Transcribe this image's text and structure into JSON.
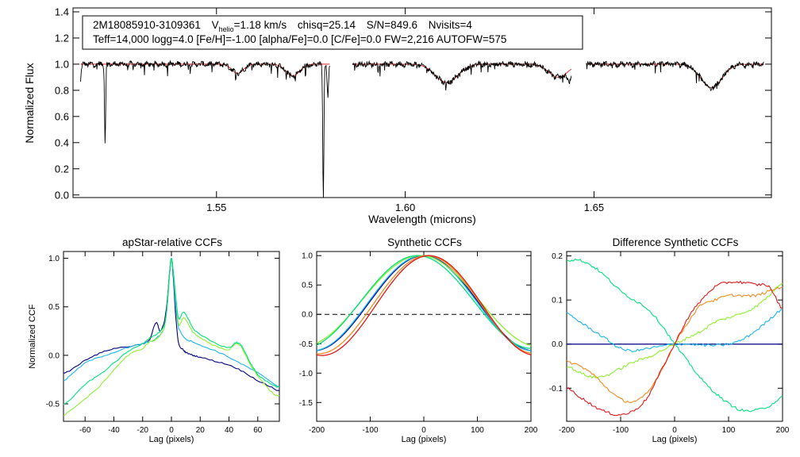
{
  "chart_data": [
    {
      "id": "spectrum",
      "type": "line",
      "xlabel": "Wavelength (microns)",
      "ylabel": "Normalized Flux",
      "xlim": [
        1.512,
        1.697
      ],
      "ylim": [
        -0.02,
        1.43
      ],
      "xticks": [
        {
          "v": 1.55,
          "label": "1.55"
        },
        {
          "v": 1.6,
          "label": "1.60"
        },
        {
          "v": 1.65,
          "label": "1.65"
        }
      ],
      "yticks": [
        {
          "v": 0.0,
          "label": "0.0"
        },
        {
          "v": 0.2,
          "label": "0.2"
        },
        {
          "v": 0.4,
          "label": "0.4"
        },
        {
          "v": 0.6,
          "label": "0.6"
        },
        {
          "v": 0.8,
          "label": "0.8"
        },
        {
          "v": 1.0,
          "label": "1.0"
        },
        {
          "v": 1.2,
          "label": "1.2"
        },
        {
          "v": 1.4,
          "label": "1.4"
        }
      ],
      "info": {
        "star": "2M18085910-3109361",
        "vhelio_prefix": "V",
        "vhelio_sub": "helio",
        "vhelio_value": "=1.18 km/s",
        "chisq": "chisq=25.14",
        "sn": "S/N=849.6",
        "nvisits": "Nvisits=4",
        "params": "Teff=14,000 logg=4.0 [Fe/H]=-1.00 [alpha/Fe]=0.0 [C/Fe]=0.0 FW=2,216 AUTOFW=575"
      },
      "segments": [
        [
          1.514,
          1.58
        ],
        [
          1.586,
          1.644
        ],
        [
          1.648,
          1.695
        ]
      ],
      "lines": [
        {
          "center": 1.5137,
          "depth": 0.22,
          "width": 0.0003
        },
        {
          "center": 1.5205,
          "depth": 0.6,
          "width": 0.00015
        },
        {
          "center": 1.5783,
          "depth": 1.05,
          "width": 0.00015
        },
        {
          "center": 1.5795,
          "depth": 0.25,
          "width": 0.0002
        },
        {
          "center": 1.6435,
          "depth": 0.08,
          "width": 0.0006
        }
      ],
      "broad_lines": [
        {
          "center": 1.5556,
          "depth": 0.07,
          "width": 0.0015
        },
        {
          "center": 1.5702,
          "depth": 0.09,
          "width": 0.0018
        },
        {
          "center": 1.611,
          "depth": 0.14,
          "width": 0.003
        },
        {
          "center": 1.6405,
          "depth": 0.1,
          "width": 0.0025
        },
        {
          "center": 1.6811,
          "depth": 0.18,
          "width": 0.0028
        }
      ],
      "series": [
        {
          "name": "observed",
          "color": "#000000"
        },
        {
          "name": "model",
          "color": "#e02020"
        }
      ]
    },
    {
      "id": "apstar_ccf",
      "type": "line",
      "title": "apStar-relative CCFs",
      "xlabel": "Lag (pixels)",
      "ylabel": "Normalized CCF",
      "xlim": [
        -75,
        75
      ],
      "ylim": [
        -0.68,
        1.07
      ],
      "xticks": [
        {
          "v": -60,
          "label": "-60"
        },
        {
          "v": -40,
          "label": "-40"
        },
        {
          "v": -20,
          "label": "-20"
        },
        {
          "v": 0,
          "label": "0"
        },
        {
          "v": 20,
          "label": "20"
        },
        {
          "v": 40,
          "label": "40"
        },
        {
          "v": 60,
          "label": "60"
        }
      ],
      "yticks": [
        {
          "v": -0.5,
          "label": "-0.5"
        },
        {
          "v": 0.0,
          "label": "0.0"
        },
        {
          "v": 0.5,
          "label": "0.5"
        },
        {
          "v": 1.0,
          "label": "1.0"
        }
      ],
      "series": [
        {
          "name": "visit-1",
          "color": "#00007f",
          "x": [
            -75,
            -70,
            -60,
            -50,
            -40,
            -30,
            -20,
            -15,
            -12,
            -10,
            -8,
            -5,
            -3,
            -1,
            0,
            1,
            3,
            5,
            8,
            10,
            15,
            20,
            30,
            40,
            50,
            60,
            70,
            75
          ],
          "y": [
            -0.18,
            -0.15,
            -0.05,
            0.02,
            0.07,
            0.09,
            0.12,
            0.16,
            0.3,
            0.33,
            0.25,
            0.34,
            0.55,
            0.9,
            0.99,
            0.85,
            0.4,
            0.12,
            0.06,
            0.03,
            0.0,
            -0.02,
            -0.06,
            -0.1,
            -0.17,
            -0.26,
            -0.33,
            -0.37
          ]
        },
        {
          "name": "visit-2",
          "color": "#1ab4f0",
          "x": [
            -75,
            -70,
            -60,
            -50,
            -40,
            -30,
            -20,
            -15,
            -10,
            -5,
            -3,
            -1,
            0,
            1,
            3,
            5,
            10,
            15,
            20,
            30,
            40,
            50,
            60,
            70,
            75
          ],
          "y": [
            -0.26,
            -0.2,
            -0.08,
            -0.02,
            0.03,
            0.08,
            0.12,
            0.14,
            0.18,
            0.28,
            0.5,
            0.88,
            1.0,
            0.88,
            0.5,
            0.28,
            0.17,
            0.14,
            0.1,
            0.05,
            -0.02,
            -0.1,
            -0.18,
            -0.28,
            -0.32
          ]
        },
        {
          "name": "visit-3",
          "color": "#90ee30",
          "x": [
            -75,
            -70,
            -60,
            -50,
            -40,
            -30,
            -20,
            -15,
            -10,
            -5,
            -3,
            -1,
            0,
            1,
            3,
            5,
            8,
            10,
            15,
            20,
            30,
            40,
            45,
            48,
            50,
            55,
            60,
            70,
            75
          ],
          "y": [
            -0.62,
            -0.56,
            -0.45,
            -0.32,
            -0.15,
            0.0,
            0.07,
            0.14,
            0.17,
            0.28,
            0.5,
            0.88,
            0.98,
            0.9,
            0.6,
            0.32,
            0.38,
            0.36,
            0.24,
            0.18,
            0.1,
            0.06,
            0.12,
            0.1,
            0.04,
            -0.1,
            -0.22,
            -0.38,
            -0.42
          ]
        },
        {
          "name": "visit-4",
          "color": "#00e080",
          "x": [
            -75,
            -70,
            -60,
            -50,
            -40,
            -30,
            -20,
            -15,
            -10,
            -5,
            -3,
            -1,
            0,
            1,
            3,
            5,
            8,
            10,
            15,
            20,
            30,
            40,
            45,
            48,
            50,
            55,
            60,
            70,
            75
          ],
          "y": [
            -0.5,
            -0.45,
            -0.3,
            -0.2,
            -0.08,
            0.04,
            0.12,
            0.18,
            0.22,
            0.3,
            0.5,
            0.88,
            1.0,
            0.9,
            0.6,
            0.38,
            0.44,
            0.42,
            0.28,
            0.21,
            0.13,
            0.08,
            0.13,
            0.11,
            0.06,
            -0.08,
            -0.2,
            -0.3,
            -0.33
          ]
        }
      ]
    },
    {
      "id": "synthetic_ccf",
      "type": "line",
      "title": "Synthetic CCFs",
      "xlabel": "Lag (pixels)",
      "ylabel": "",
      "xlim": [
        -200,
        200
      ],
      "ylim": [
        -1.82,
        1.07
      ],
      "reference_line": {
        "y": 0.0,
        "style": "dashed"
      },
      "xticks": [
        {
          "v": -200,
          "label": "-200"
        },
        {
          "v": -100,
          "label": "-100"
        },
        {
          "v": 0,
          "label": "0"
        },
        {
          "v": 100,
          "label": "100"
        },
        {
          "v": 200,
          "label": "200"
        }
      ],
      "yticks": [
        {
          "v": -1.5,
          "label": "-1.5"
        },
        {
          "v": -1.0,
          "label": "-1.0"
        },
        {
          "v": -0.5,
          "label": "-0.5"
        },
        {
          "v": 0.0,
          "label": "0.0"
        },
        {
          "v": 0.5,
          "label": "0.5"
        },
        {
          "v": 1.0,
          "label": "1.0"
        }
      ],
      "series": [
        {
          "name": "visit-1",
          "color": "#00007f",
          "shift": 0,
          "width": 104,
          "depth": 1.62
        },
        {
          "name": "visit-2",
          "color": "#1ab4f0",
          "shift": -2,
          "width": 104,
          "depth": 1.62
        },
        {
          "name": "visit-3",
          "color": "#90ee30",
          "shift": -6,
          "width": 112,
          "depth": 1.55
        },
        {
          "name": "visit-4",
          "color": "#00e080",
          "shift": -12,
          "width": 108,
          "depth": 1.58
        },
        {
          "name": "visit-5",
          "color": "#f08c1e",
          "shift": 6,
          "width": 102,
          "depth": 1.67
        },
        {
          "name": "visit-6",
          "color": "#e01818",
          "shift": 10,
          "width": 101,
          "depth": 1.7
        }
      ]
    },
    {
      "id": "difference_ccf",
      "type": "line",
      "title": "Difference Synthetic CCFs",
      "xlabel": "Lag (pixels)",
      "ylabel": "",
      "xlim": [
        -200,
        200
      ],
      "ylim": [
        -0.175,
        0.21
      ],
      "reference_line": {
        "y": 0.0,
        "style": "solid",
        "color": "#00007f"
      },
      "xticks": [
        {
          "v": -200,
          "label": "-200"
        },
        {
          "v": -100,
          "label": "-100"
        },
        {
          "v": 0,
          "label": "0"
        },
        {
          "v": 100,
          "label": "100"
        },
        {
          "v": 200,
          "label": "200"
        }
      ],
      "yticks": [
        {
          "v": -0.1,
          "label": "-0.1"
        },
        {
          "v": 0.0,
          "label": "0.0"
        },
        {
          "v": 0.1,
          "label": "0.1"
        },
        {
          "v": 0.2,
          "label": "0.2"
        }
      ],
      "series": [
        {
          "name": "visit-2",
          "color": "#1ab4f0",
          "x": [
            -200,
            -175,
            -150,
            -125,
            -100,
            -75,
            -50,
            -25,
            0,
            25,
            50,
            75,
            100,
            125,
            150,
            175,
            200
          ],
          "y": [
            0.07,
            0.05,
            0.03,
            0.01,
            -0.01,
            -0.015,
            -0.01,
            -0.005,
            0.0,
            0.0,
            -0.002,
            -0.003,
            0.0,
            0.01,
            0.03,
            0.055,
            0.08
          ]
        },
        {
          "name": "visit-3",
          "color": "#90ee30",
          "x": [
            -200,
            -175,
            -150,
            -125,
            -100,
            -75,
            -50,
            -25,
            0,
            25,
            50,
            75,
            100,
            125,
            150,
            175,
            200
          ],
          "y": [
            -0.05,
            -0.065,
            -0.075,
            -0.07,
            -0.055,
            -0.04,
            -0.03,
            -0.015,
            0.0,
            0.015,
            0.03,
            0.05,
            0.06,
            0.07,
            0.085,
            0.11,
            0.14
          ]
        },
        {
          "name": "visit-4",
          "color": "#00e080",
          "x": [
            -200,
            -175,
            -150,
            -125,
            -100,
            -75,
            -50,
            -25,
            0,
            25,
            50,
            75,
            100,
            125,
            150,
            175,
            200
          ],
          "y": [
            0.19,
            0.19,
            0.175,
            0.15,
            0.12,
            0.1,
            0.08,
            0.045,
            0.0,
            -0.04,
            -0.08,
            -0.11,
            -0.135,
            -0.15,
            -0.15,
            -0.14,
            -0.12
          ]
        },
        {
          "name": "visit-5",
          "color": "#f08c1e",
          "x": [
            -200,
            -175,
            -150,
            -125,
            -100,
            -75,
            -50,
            -25,
            0,
            25,
            50,
            75,
            100,
            125,
            150,
            175,
            200
          ],
          "y": [
            -0.04,
            -0.05,
            -0.07,
            -0.1,
            -0.125,
            -0.13,
            -0.11,
            -0.06,
            0.0,
            0.05,
            0.09,
            0.1,
            0.11,
            0.11,
            0.11,
            0.12,
            0.13
          ]
        },
        {
          "name": "visit-6",
          "color": "#e01818",
          "x": [
            -200,
            -175,
            -150,
            -125,
            -100,
            -75,
            -50,
            -25,
            0,
            25,
            50,
            75,
            100,
            125,
            150,
            175,
            200
          ],
          "y": [
            -0.1,
            -0.12,
            -0.14,
            -0.155,
            -0.16,
            -0.15,
            -0.12,
            -0.06,
            0.0,
            0.06,
            0.1,
            0.13,
            0.14,
            0.14,
            0.135,
            0.13,
            0.08
          ]
        }
      ]
    }
  ]
}
